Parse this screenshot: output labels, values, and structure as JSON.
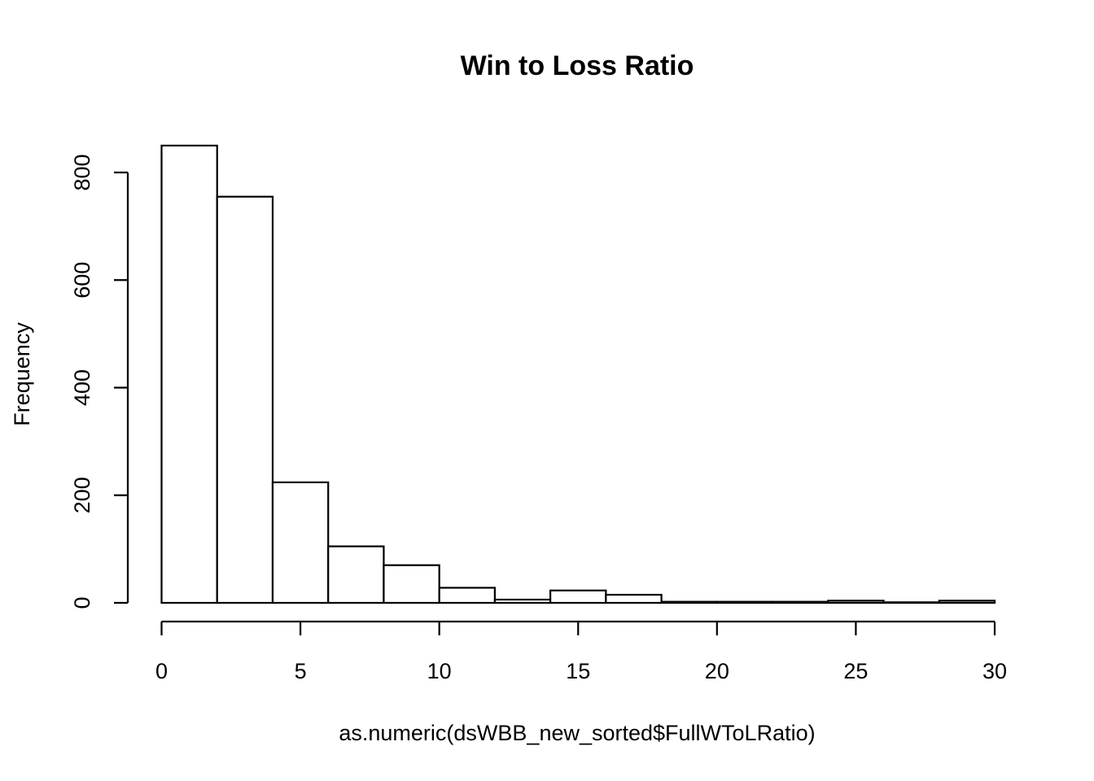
{
  "chart_data": {
    "type": "bar",
    "subtype": "histogram",
    "title": "Win to Loss Ratio",
    "xlabel": "as.numeric(dsWBB_new_sorted$FullWToLRatio)",
    "ylabel": "Frequency",
    "bins": [
      {
        "x0": 0,
        "x1": 2,
        "count": 850
      },
      {
        "x0": 2,
        "x1": 4,
        "count": 755
      },
      {
        "x0": 4,
        "x1": 6,
        "count": 224
      },
      {
        "x0": 6,
        "x1": 8,
        "count": 105
      },
      {
        "x0": 8,
        "x1": 10,
        "count": 70
      },
      {
        "x0": 10,
        "x1": 12,
        "count": 28
      },
      {
        "x0": 12,
        "x1": 14,
        "count": 6
      },
      {
        "x0": 14,
        "x1": 16,
        "count": 23
      },
      {
        "x0": 16,
        "x1": 18,
        "count": 15
      },
      {
        "x0": 18,
        "x1": 20,
        "count": 2
      },
      {
        "x0": 20,
        "x1": 22,
        "count": 2
      },
      {
        "x0": 22,
        "x1": 24,
        "count": 2
      },
      {
        "x0": 24,
        "x1": 26,
        "count": 4
      },
      {
        "x0": 26,
        "x1": 28,
        "count": 1
      },
      {
        "x0": 28,
        "x1": 30,
        "count": 4
      }
    ],
    "xlim": [
      0,
      30
    ],
    "ylim": [
      0,
      850
    ],
    "xticks": [
      0,
      5,
      10,
      15,
      20,
      25,
      30
    ],
    "yticks": [
      0,
      200,
      400,
      600,
      800
    ],
    "grid": false,
    "legend": "none",
    "colors": {
      "bar_fill": "#ffffff",
      "bar_stroke": "#000000"
    }
  }
}
